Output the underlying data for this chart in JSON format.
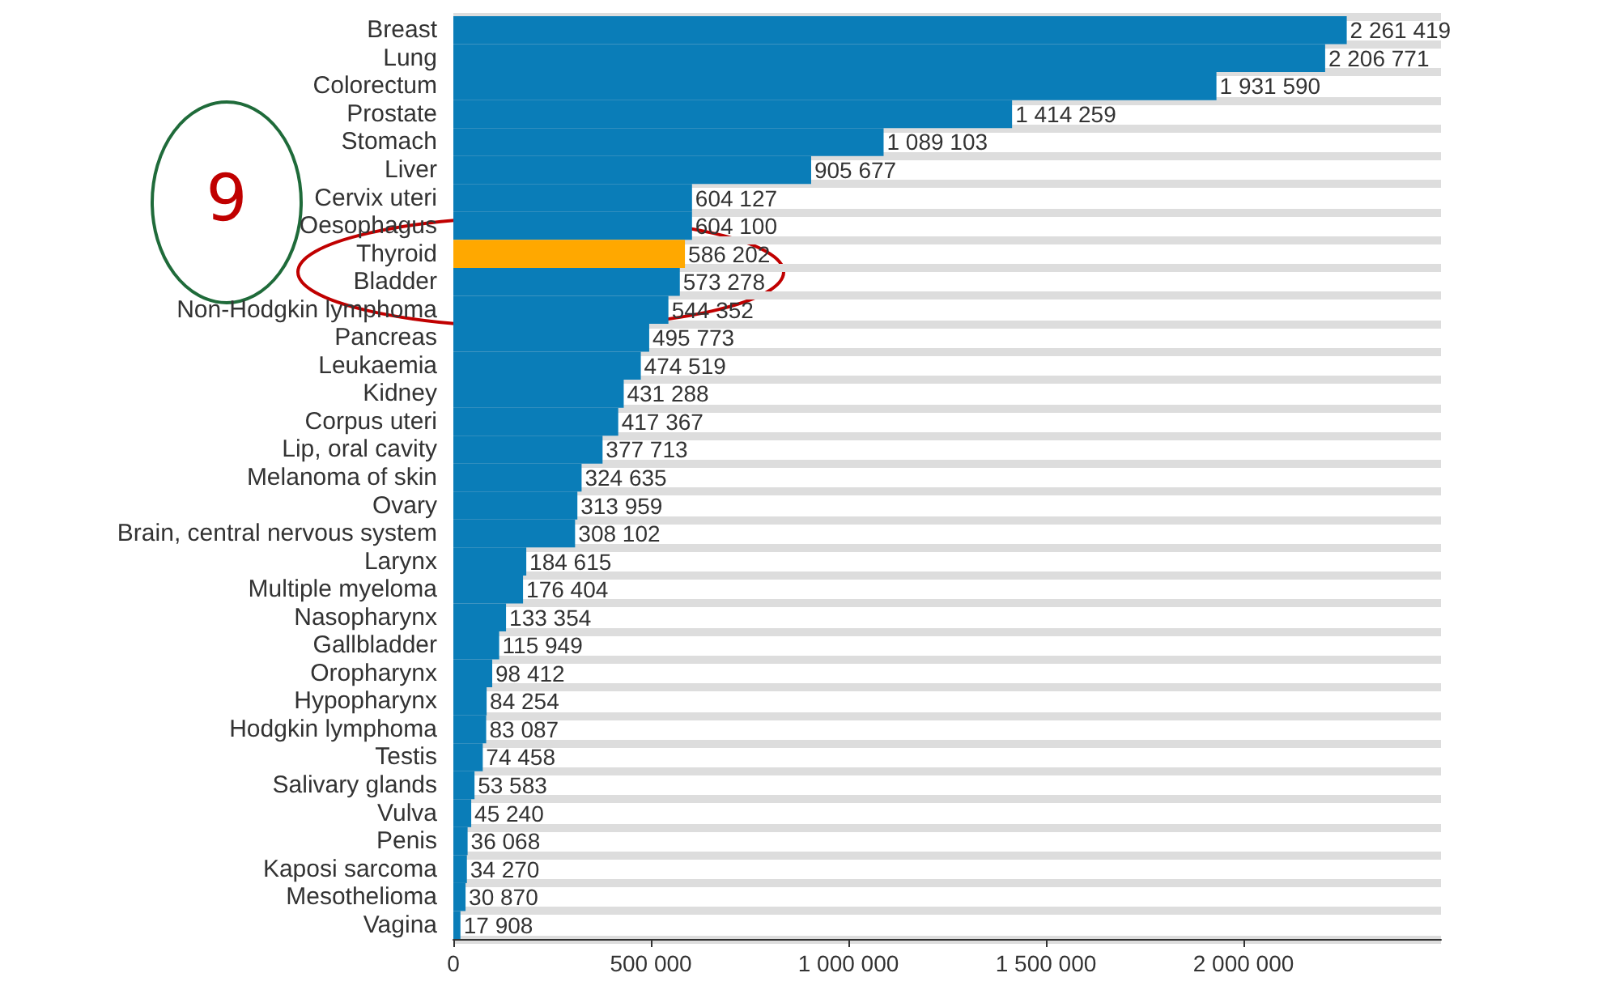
{
  "chart_data": {
    "type": "bar",
    "orientation": "horizontal",
    "categories": [
      "Breast",
      "Lung",
      "Colorectum",
      "Prostate",
      "Stomach",
      "Liver",
      "Cervix uteri",
      "Oesophagus",
      "Thyroid",
      "Bladder",
      "Non-Hodgkin lymphoma",
      "Pancreas",
      "Leukaemia",
      "Kidney",
      "Corpus uteri",
      "Lip, oral cavity",
      "Melanoma of skin",
      "Ovary",
      "Brain, central nervous system",
      "Larynx",
      "Multiple myeloma",
      "Nasopharynx",
      "Gallbladder",
      "Oropharynx",
      "Hypopharynx",
      "Hodgkin lymphoma",
      "Testis",
      "Salivary glands",
      "Vulva",
      "Penis",
      "Kaposi sarcoma",
      "Mesothelioma",
      "Vagina"
    ],
    "values": [
      2261419,
      2206771,
      1931590,
      1414259,
      1089103,
      905677,
      604127,
      604100,
      586202,
      573278,
      544352,
      495773,
      474519,
      431288,
      417367,
      377713,
      324635,
      313959,
      308102,
      184615,
      176404,
      133354,
      115949,
      98412,
      84254,
      83087,
      74458,
      53583,
      45240,
      36068,
      34270,
      30870,
      17908
    ],
    "value_labels": [
      "2 261 419",
      "2 206 771",
      "1 931 590",
      "1 414 259",
      "1 089 103",
      "905 677",
      "604 127",
      "604 100",
      "586 202",
      "573 278",
      "544 352",
      "495 773",
      "474 519",
      "431 288",
      "417 367",
      "377 713",
      "324 635",
      "313 959",
      "308 102",
      "184 615",
      "176 404",
      "133 354",
      "115 949",
      "98 412",
      "84 254",
      "83 087",
      "74 458",
      "53 583",
      "45 240",
      "36 068",
      "34 270",
      "30 870",
      "17 908"
    ],
    "colors": [
      "#0a7db8",
      "#0a7db8",
      "#0a7db8",
      "#0a7db8",
      "#0a7db8",
      "#0a7db8",
      "#0a7db8",
      "#0a7db8",
      "#ffa800",
      "#0a7db8",
      "#0a7db8",
      "#0a7db8",
      "#0a7db8",
      "#0a7db8",
      "#0a7db8",
      "#0a7db8",
      "#0a7db8",
      "#0a7db8",
      "#0a7db8",
      "#0a7db8",
      "#0a7db8",
      "#0a7db8",
      "#0a7db8",
      "#0a7db8",
      "#0a7db8",
      "#0a7db8",
      "#0a7db8",
      "#0a7db8",
      "#0a7db8",
      "#0a7db8",
      "#0a7db8",
      "#0a7db8",
      "#0a7db8"
    ],
    "xlim": [
      0,
      2500000
    ],
    "xticks": [
      {
        "value": 0,
        "label": "0"
      },
      {
        "value": 500000,
        "label": "500 000"
      },
      {
        "value": 1000000,
        "label": "1 000 000"
      },
      {
        "value": 1500000,
        "label": "1 500 000"
      },
      {
        "value": 2000000,
        "label": "2 000 000"
      }
    ],
    "grid": "y",
    "annotations": [
      "9"
    ]
  }
}
